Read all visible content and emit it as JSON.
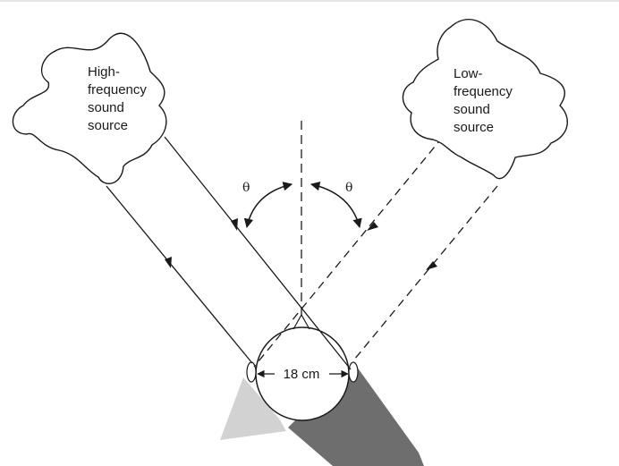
{
  "sources": {
    "high": {
      "lines": [
        "High-",
        "frequency",
        "sound",
        "source"
      ]
    },
    "low": {
      "lines": [
        "Low-",
        "frequency",
        "sound",
        "source"
      ]
    }
  },
  "angles": {
    "left": "θ",
    "right": "θ"
  },
  "head": {
    "width_label": "18 cm"
  }
}
